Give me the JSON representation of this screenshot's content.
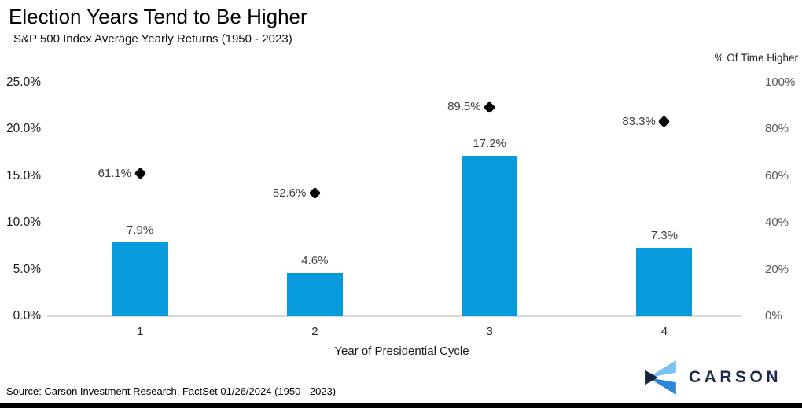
{
  "title": "Election Years Tend to Be Higher",
  "subtitle": "S&P 500 Index Average Yearly Returns (1950 - 2023)",
  "right_axis_title": "% Of Time Higher",
  "source": "Source: Carson Investment Research, FactSet 01/26/2024 (1950 - 2023)",
  "logo": {
    "text": "CARSON"
  },
  "colors": {
    "bar": "#089BDB",
    "diamond": "#000000",
    "baseline": "#D9D9D9",
    "logo_light_blue": "#7AC2F0",
    "logo_mid_blue": "#2E86D6",
    "logo_dark_navy": "#16233F",
    "logo_text_navy": "#1B2B4B"
  },
  "chart_data": {
    "type": "bar",
    "categories": [
      "1",
      "2",
      "3",
      "4"
    ],
    "series": [
      {
        "name": "Average Yearly Return",
        "type": "bar",
        "axis": "left",
        "values": [
          7.9,
          4.6,
          17.2,
          7.3
        ],
        "labels": [
          "7.9%",
          "4.6%",
          "17.2%",
          "7.3%"
        ]
      },
      {
        "name": "% Of Time Higher",
        "type": "scatter-diamond",
        "axis": "right",
        "values": [
          61.1,
          52.6,
          89.5,
          83.3
        ],
        "labels": [
          "61.1%",
          "52.6%",
          "89.5%",
          "83.3%"
        ]
      }
    ],
    "xlabel": "Year of Presidential Cycle",
    "left_axis": {
      "ticks": [
        "0.0%",
        "5.0%",
        "10.0%",
        "15.0%",
        "20.0%",
        "25.0%"
      ],
      "min": 0,
      "max": 25
    },
    "right_axis": {
      "ticks": [
        "0%",
        "20%",
        "40%",
        "60%",
        "80%",
        "100%"
      ],
      "min": 0,
      "max": 100
    },
    "grid": false,
    "legend": "none"
  }
}
